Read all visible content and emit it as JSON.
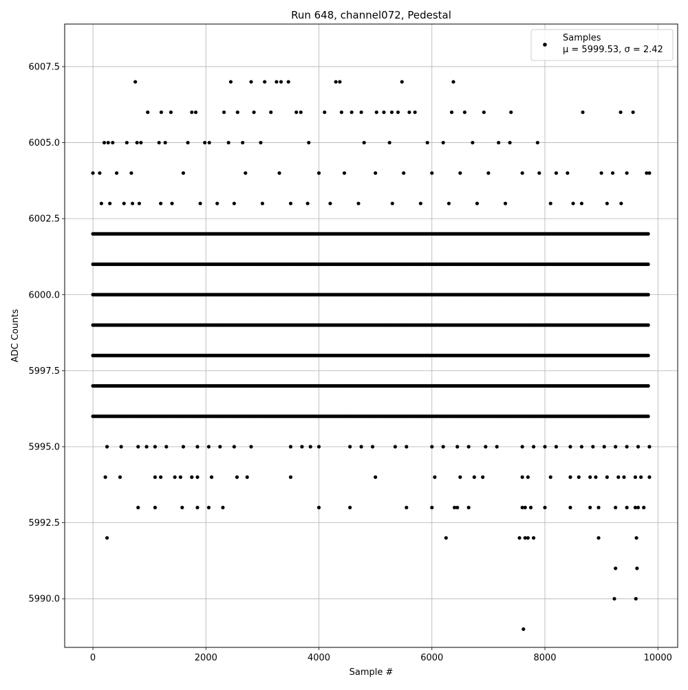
{
  "chart_data": {
    "type": "scatter",
    "title": "Run 648, channel072, Pedestal",
    "xlabel": "Sample #",
    "ylabel": "ADC Counts",
    "xlim": [
      -500,
      10350
    ],
    "ylim": [
      5988.4,
      6008.9
    ],
    "x_ticks": [
      0,
      2000,
      4000,
      6000,
      8000,
      10000
    ],
    "x_tick_labels": [
      "0",
      "2000",
      "4000",
      "6000",
      "8000",
      "10000"
    ],
    "y_ticks": [
      5990.0,
      5992.5,
      5995.0,
      5997.5,
      6000.0,
      6002.5,
      6005.0,
      6007.5
    ],
    "y_tick_labels": [
      "5990.0",
      "5992.5",
      "5995.0",
      "5997.5",
      "6000.0",
      "6002.5",
      "6005.0",
      "6007.5"
    ],
    "grid": true,
    "legend": {
      "position": "top-right",
      "entries": [
        "Samples"
      ],
      "stats_text": "μ = 5999.53, σ = 2.42"
    },
    "marker_color": "#000000",
    "series": [
      {
        "name": "Samples",
        "points": [
          [
            0,
            6004
          ],
          [
            120,
            6004
          ],
          [
            200,
            6005
          ],
          [
            270,
            6005
          ],
          [
            350,
            6005
          ],
          [
            420,
            6004
          ],
          [
            600,
            6005
          ],
          [
            680,
            6004
          ],
          [
            750,
            6007
          ],
          [
            780,
            6005
          ],
          [
            850,
            6005
          ],
          [
            970,
            6006
          ],
          [
            1170,
            6005
          ],
          [
            1210,
            6006
          ],
          [
            1280,
            6005
          ],
          [
            1380,
            6006
          ],
          [
            1680,
            6005
          ],
          [
            1750,
            6006
          ],
          [
            1820,
            6006
          ],
          [
            1980,
            6005
          ],
          [
            2060,
            6005
          ],
          [
            2320,
            6006
          ],
          [
            2400,
            6005
          ],
          [
            2440,
            6007
          ],
          [
            2560,
            6006
          ],
          [
            2650,
            6005
          ],
          [
            2800,
            6007
          ],
          [
            2850,
            6006
          ],
          [
            2970,
            6005
          ],
          [
            3040,
            6007
          ],
          [
            3150,
            6006
          ],
          [
            3250,
            6007
          ],
          [
            3330,
            6007
          ],
          [
            3460,
            6007
          ],
          [
            3600,
            6006
          ],
          [
            3680,
            6006
          ],
          [
            3820,
            6005
          ],
          [
            4100,
            6006
          ],
          [
            4300,
            6007
          ],
          [
            4370,
            6007
          ],
          [
            4400,
            6006
          ],
          [
            4580,
            6006
          ],
          [
            4750,
            6006
          ],
          [
            4800,
            6005
          ],
          [
            5020,
            6006
          ],
          [
            5150,
            6006
          ],
          [
            5250,
            6005
          ],
          [
            5290,
            6006
          ],
          [
            5400,
            6006
          ],
          [
            5470,
            6007
          ],
          [
            5600,
            6006
          ],
          [
            5700,
            6006
          ],
          [
            5920,
            6005
          ],
          [
            6200,
            6005
          ],
          [
            6350,
            6006
          ],
          [
            6380,
            6007
          ],
          [
            6580,
            6006
          ],
          [
            6720,
            6005
          ],
          [
            6920,
            6006
          ],
          [
            7180,
            6005
          ],
          [
            7400,
            6006
          ],
          [
            7380,
            6005
          ],
          [
            7870,
            6005
          ],
          [
            8670,
            6006
          ],
          [
            9340,
            6006
          ],
          [
            9560,
            6006
          ],
          [
            150,
            6003
          ],
          [
            300,
            6003
          ],
          [
            550,
            6003
          ],
          [
            700,
            6003
          ],
          [
            820,
            6003
          ],
          [
            1200,
            6003
          ],
          [
            1400,
            6003
          ],
          [
            1600,
            6004
          ],
          [
            1900,
            6003
          ],
          [
            2200,
            6003
          ],
          [
            2500,
            6003
          ],
          [
            2700,
            6004
          ],
          [
            3000,
            6003
          ],
          [
            3300,
            6004
          ],
          [
            3500,
            6003
          ],
          [
            3800,
            6003
          ],
          [
            4000,
            6004
          ],
          [
            4200,
            6003
          ],
          [
            4450,
            6004
          ],
          [
            4700,
            6003
          ],
          [
            5000,
            6004
          ],
          [
            5300,
            6003
          ],
          [
            5500,
            6004
          ],
          [
            5800,
            6003
          ],
          [
            6000,
            6004
          ],
          [
            6300,
            6003
          ],
          [
            6500,
            6004
          ],
          [
            6800,
            6003
          ],
          [
            7000,
            6004
          ],
          [
            7300,
            6003
          ],
          [
            7600,
            6004
          ],
          [
            7900,
            6004
          ],
          [
            8100,
            6003
          ],
          [
            8200,
            6004
          ],
          [
            8400,
            6004
          ],
          [
            8500,
            6003
          ],
          [
            8650,
            6003
          ],
          [
            9000,
            6004
          ],
          [
            9100,
            6003
          ],
          [
            9200,
            6004
          ],
          [
            9350,
            6003
          ],
          [
            9450,
            6004
          ],
          [
            9800,
            6004
          ],
          [
            9850,
            6004
          ],
          [
            250,
            5995
          ],
          [
            500,
            5995
          ],
          [
            800,
            5995
          ],
          [
            950,
            5995
          ],
          [
            1100,
            5995
          ],
          [
            1300,
            5995
          ],
          [
            1600,
            5995
          ],
          [
            1850,
            5995
          ],
          [
            2050,
            5995
          ],
          [
            2250,
            5995
          ],
          [
            2500,
            5995
          ],
          [
            2800,
            5995
          ],
          [
            3500,
            5995
          ],
          [
            3700,
            5995
          ],
          [
            3850,
            5995
          ],
          [
            4000,
            5995
          ],
          [
            4550,
            5995
          ],
          [
            4750,
            5995
          ],
          [
            4950,
            5995
          ],
          [
            5350,
            5995
          ],
          [
            5550,
            5995
          ],
          [
            6000,
            5995
          ],
          [
            6200,
            5995
          ],
          [
            6450,
            5995
          ],
          [
            6650,
            5995
          ],
          [
            6950,
            5995
          ],
          [
            7150,
            5995
          ],
          [
            7600,
            5995
          ],
          [
            7800,
            5995
          ],
          [
            8000,
            5995
          ],
          [
            8200,
            5995
          ],
          [
            8450,
            5995
          ],
          [
            8650,
            5995
          ],
          [
            8850,
            5995
          ],
          [
            9050,
            5995
          ],
          [
            9250,
            5995
          ],
          [
            9450,
            5995
          ],
          [
            9650,
            5995
          ],
          [
            9850,
            5995
          ],
          [
            220,
            5994
          ],
          [
            480,
            5994
          ],
          [
            1100,
            5994
          ],
          [
            1200,
            5994
          ],
          [
            1450,
            5994
          ],
          [
            1550,
            5994
          ],
          [
            1750,
            5994
          ],
          [
            1850,
            5994
          ],
          [
            2100,
            5994
          ],
          [
            2550,
            5994
          ],
          [
            2730,
            5994
          ],
          [
            3500,
            5994
          ],
          [
            5000,
            5994
          ],
          [
            6050,
            5994
          ],
          [
            6500,
            5994
          ],
          [
            6750,
            5994
          ],
          [
            6900,
            5994
          ],
          [
            7600,
            5994
          ],
          [
            7700,
            5994
          ],
          [
            8100,
            5994
          ],
          [
            8450,
            5994
          ],
          [
            8600,
            5994
          ],
          [
            8800,
            5994
          ],
          [
            8900,
            5994
          ],
          [
            9100,
            5994
          ],
          [
            9300,
            5994
          ],
          [
            9400,
            5994
          ],
          [
            9600,
            5994
          ],
          [
            9700,
            5994
          ],
          [
            9850,
            5994
          ],
          [
            800,
            5993
          ],
          [
            1100,
            5993
          ],
          [
            1580,
            5993
          ],
          [
            1850,
            5993
          ],
          [
            2050,
            5993
          ],
          [
            2300,
            5993
          ],
          [
            4000,
            5993
          ],
          [
            4550,
            5993
          ],
          [
            5550,
            5993
          ],
          [
            6000,
            5993
          ],
          [
            6400,
            5993
          ],
          [
            6450,
            5993
          ],
          [
            6650,
            5993
          ],
          [
            7600,
            5993
          ],
          [
            7650,
            5993
          ],
          [
            7750,
            5993
          ],
          [
            8000,
            5993
          ],
          [
            8450,
            5993
          ],
          [
            8800,
            5993
          ],
          [
            8950,
            5993
          ],
          [
            9250,
            5993
          ],
          [
            9450,
            5993
          ],
          [
            9600,
            5993
          ],
          [
            9650,
            5993
          ],
          [
            9750,
            5993
          ],
          [
            250,
            5992
          ],
          [
            6250,
            5992
          ],
          [
            7550,
            5992
          ],
          [
            7650,
            5992
          ],
          [
            7700,
            5992
          ],
          [
            7800,
            5992
          ],
          [
            8950,
            5992
          ],
          [
            9620,
            5992
          ],
          [
            9250,
            5991
          ],
          [
            9630,
            5991
          ],
          [
            9230,
            5990
          ],
          [
            9610,
            5990
          ],
          [
            7620,
            5989
          ]
        ],
        "dense_rows": [
          {
            "y": 6002,
            "x_range": [
              0,
              9850
            ]
          },
          {
            "y": 6001,
            "x_range": [
              0,
              9850
            ]
          },
          {
            "y": 6000,
            "x_range": [
              0,
              9850
            ]
          },
          {
            "y": 5999,
            "x_range": [
              0,
              9850
            ]
          },
          {
            "y": 5998,
            "x_range": [
              0,
              9850
            ]
          },
          {
            "y": 5997,
            "x_range": [
              0,
              9850
            ]
          },
          {
            "y": 5996,
            "x_range": [
              0,
              9850
            ]
          }
        ]
      }
    ]
  }
}
